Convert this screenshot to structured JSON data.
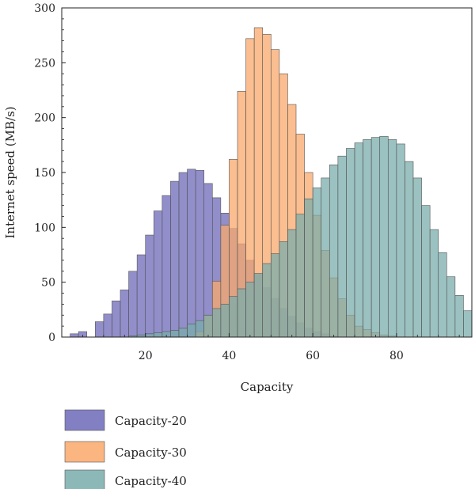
{
  "chart_data": {
    "type": "bar",
    "title": "",
    "xlabel": "Capacity",
    "ylabel": "Internet speed (MB/s)",
    "xlim": [
      0,
      98
    ],
    "ylim": [
      0,
      300
    ],
    "x_ticks": [
      20,
      40,
      60,
      80
    ],
    "y_ticks": [
      0,
      50,
      100,
      150,
      200,
      250,
      300
    ],
    "grid": false,
    "legend_position": "bottom-left",
    "bin_width": 2,
    "bin_starts": [
      0,
      2,
      4,
      6,
      8,
      10,
      12,
      14,
      16,
      18,
      20,
      22,
      24,
      26,
      28,
      30,
      32,
      34,
      36,
      38,
      40,
      42,
      44,
      46,
      48,
      50,
      52,
      54,
      56,
      58,
      60,
      62,
      64,
      66,
      68,
      70,
      72,
      74,
      76,
      78,
      80,
      82,
      84,
      86,
      88,
      90,
      92,
      94,
      96
    ],
    "series": [
      {
        "name": "Capacity-20",
        "color": "#6c68b8",
        "values": [
          0,
          3,
          5,
          0,
          14,
          21,
          33,
          43,
          60,
          75,
          93,
          115,
          129,
          142,
          150,
          153,
          152,
          140,
          127,
          113,
          99,
          85,
          70,
          57,
          45,
          35,
          26,
          19,
          13,
          8,
          5,
          3,
          1,
          0,
          0,
          0,
          0,
          0,
          0,
          0,
          0,
          0,
          0,
          0,
          0,
          0,
          0,
          0,
          0
        ]
      },
      {
        "name": "Capacity-30",
        "color": "#f9a86b",
        "values": [
          0,
          0,
          0,
          0,
          0,
          0,
          0,
          0,
          0,
          0,
          0,
          0,
          0,
          0,
          0,
          0,
          5,
          20,
          51,
          102,
          162,
          224,
          272,
          282,
          276,
          262,
          240,
          212,
          185,
          150,
          111,
          79,
          54,
          35,
          20,
          10,
          7,
          4,
          2,
          1,
          0,
          0,
          0,
          0,
          0,
          0,
          0,
          0,
          0
        ]
      },
      {
        "name": "Capacity-40",
        "color": "#79acab",
        "values": [
          0,
          0,
          0,
          0,
          0,
          0,
          0,
          0,
          1,
          2,
          3,
          4,
          5,
          6,
          8,
          12,
          15,
          20,
          26,
          30,
          37,
          44,
          50,
          58,
          67,
          76,
          87,
          98,
          112,
          126,
          136,
          145,
          157,
          165,
          172,
          177,
          180,
          182,
          183,
          180,
          176,
          160,
          145,
          120,
          98,
          77,
          55,
          38,
          24
        ]
      }
    ]
  }
}
